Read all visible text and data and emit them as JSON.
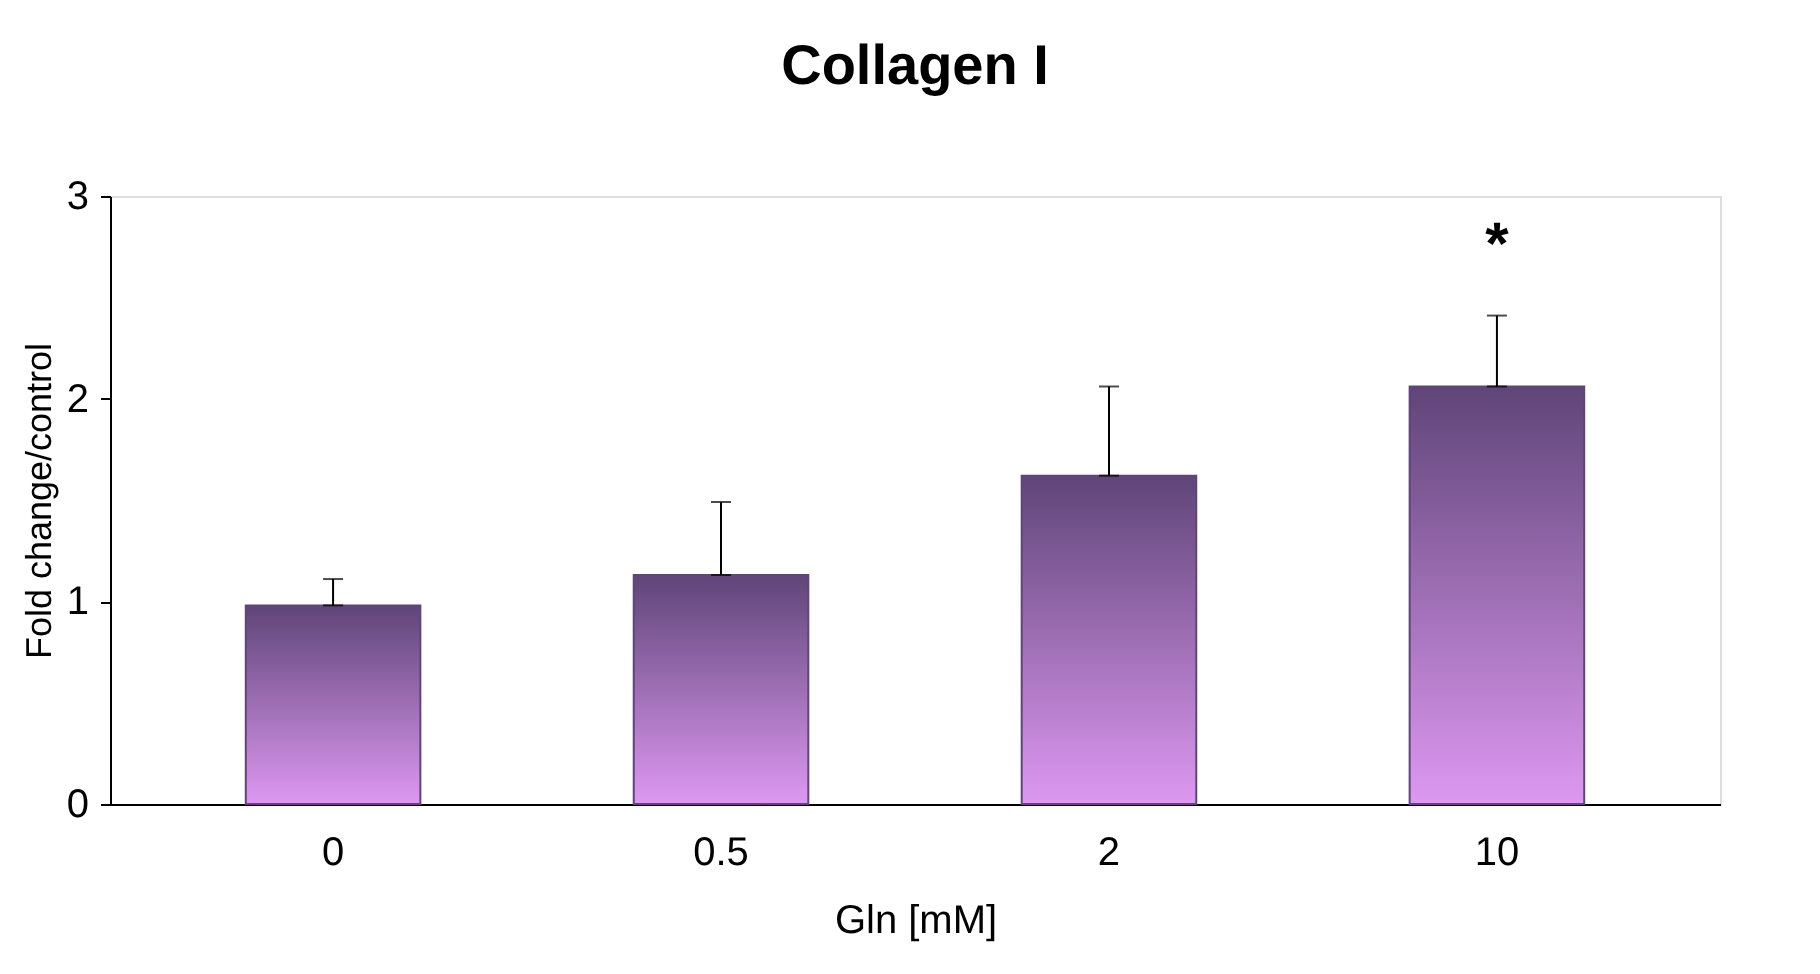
{
  "chart_data": {
    "type": "bar",
    "title": "Collagen I",
    "xlabel": "Gln [mM]",
    "ylabel": "Fold change/control",
    "categories": [
      "0",
      "0.5",
      "2",
      "10"
    ],
    "series": [
      {
        "color": "#5f4578",
        "values": [
          0.98,
          1.13,
          1.62,
          2.06
        ],
        "errors": [
          [
            0.98,
            1.11
          ],
          [
            1.13,
            1.49
          ],
          [
            1.62,
            2.06
          ],
          [
            2.06,
            2.41
          ]
        ]
      }
    ],
    "ylim": [
      0,
      3
    ],
    "yticks": [
      0,
      1,
      2,
      3
    ],
    "grid": false,
    "annotations": [
      "*"
    ]
  }
}
